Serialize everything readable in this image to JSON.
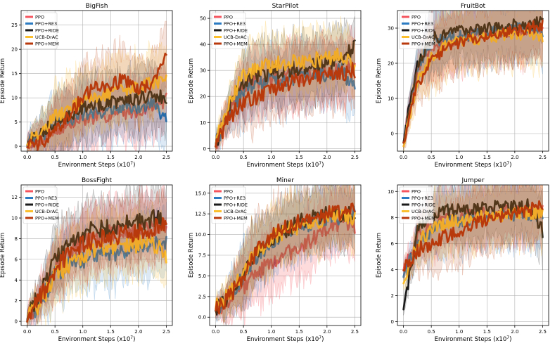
{
  "figure": {
    "xlabel": "Environment Steps (x10",
    "xlabel_exp": "7",
    "xlabel_close": ")",
    "ylabel": "Episode Return"
  },
  "legend": [
    {
      "name": "PPO",
      "color": "#f4555e"
    },
    {
      "name": "PPO+RE3",
      "color": "#2a7bc2"
    },
    {
      "name": "PPO+RIDE",
      "color": "#1a1a1a"
    },
    {
      "name": "UCB-DrAC",
      "color": "#fbbf2e"
    },
    {
      "name": "PPO+MEM",
      "color": "#b83a0c"
    }
  ],
  "chart_data": [
    {
      "type": "line",
      "title": "BigFish",
      "xlabel": "Environment Steps (x10^7)",
      "ylabel": "Episode Return",
      "xlim": [
        0,
        2.5
      ],
      "ylim": [
        -1,
        28
      ],
      "xticks": [
        "0.0",
        "0.5",
        "1.0",
        "1.5",
        "2.0",
        "2.5"
      ],
      "yticks": [
        "0",
        "5",
        "10",
        "15",
        "20",
        "25"
      ],
      "x": [
        0.0,
        0.25,
        0.5,
        0.75,
        1.0,
        1.25,
        1.5,
        1.75,
        2.0,
        2.25,
        2.5
      ],
      "series": [
        {
          "name": "PPO",
          "values": [
            0.8,
            1.5,
            3.0,
            4.5,
            5.5,
            6.0,
            6.5,
            7.0,
            7.5,
            8.5,
            9.5
          ]
        },
        {
          "name": "PPO+RE3",
          "values": [
            0.8,
            2.0,
            4.5,
            5.5,
            6.5,
            7.0,
            7.5,
            8.0,
            8.0,
            9.0,
            5.0
          ]
        },
        {
          "name": "PPO+RIDE",
          "values": [
            1.0,
            2.5,
            5.5,
            6.5,
            8.0,
            8.5,
            9.0,
            9.5,
            10.0,
            10.5,
            10.0
          ]
        },
        {
          "name": "UCB-DrAC",
          "values": [
            1.0,
            3.0,
            6.0,
            7.5,
            9.5,
            10.0,
            11.0,
            11.5,
            12.0,
            13.0,
            14.0
          ]
        },
        {
          "name": "PPO+MEM",
          "values": [
            0.5,
            0.8,
            3.0,
            6.5,
            10.0,
            13.0,
            12.5,
            14.0,
            12.0,
            13.0,
            19.5
          ]
        }
      ]
    },
    {
      "type": "line",
      "title": "StarPilot",
      "xlabel": "Environment Steps (x10^7)",
      "ylabel": "Episode Return",
      "xlim": [
        0,
        2.5
      ],
      "ylim": [
        -1,
        53
      ],
      "xticks": [
        "0.0",
        "0.5",
        "1.0",
        "1.5",
        "2.0",
        "2.5"
      ],
      "yticks": [
        "0",
        "10",
        "20",
        "30",
        "40",
        "50"
      ],
      "x": [
        0.0,
        0.25,
        0.5,
        0.75,
        1.0,
        1.25,
        1.5,
        1.75,
        2.0,
        2.25,
        2.5
      ],
      "series": [
        {
          "name": "PPO",
          "values": [
            2,
            15,
            24,
            26,
            27,
            28,
            28,
            29,
            30,
            30,
            31
          ]
        },
        {
          "name": "PPO+RE3",
          "values": [
            2,
            14,
            22,
            25,
            27,
            26,
            28,
            28,
            29,
            30,
            24
          ]
        },
        {
          "name": "PPO+RIDE",
          "values": [
            2,
            16,
            26,
            28,
            29,
            30,
            31,
            32,
            33,
            34,
            39
          ]
        },
        {
          "name": "UCB-DrAC",
          "values": [
            2,
            18,
            28,
            31,
            32,
            33,
            34,
            34,
            35,
            36,
            32
          ]
        },
        {
          "name": "PPO+MEM",
          "values": [
            2,
            12,
            18,
            20,
            23,
            25,
            26,
            27,
            28,
            29,
            30
          ]
        }
      ]
    },
    {
      "type": "line",
      "title": "FruitBot",
      "xlabel": "Environment Steps (x10^7)",
      "ylabel": "Episode Return",
      "xlim": [
        0,
        2.5
      ],
      "ylim": [
        -5,
        35
      ],
      "xticks": [
        "0.0",
        "0.5",
        "1.0",
        "1.5",
        "2.0",
        "2.5"
      ],
      "yticks": [
        "0",
        "10",
        "20",
        "30"
      ],
      "x": [
        0.0,
        0.25,
        0.5,
        0.75,
        1.0,
        1.25,
        1.5,
        1.75,
        2.0,
        2.25,
        2.5
      ],
      "series": [
        {
          "name": "PPO",
          "values": [
            -2,
            18,
            25,
            26,
            27,
            28,
            28,
            29,
            29,
            30,
            30
          ]
        },
        {
          "name": "PPO+RE3",
          "values": [
            -2,
            19,
            26,
            27,
            28,
            28,
            29,
            29,
            30,
            30,
            29
          ]
        },
        {
          "name": "PPO+RIDE",
          "values": [
            -2,
            20,
            27,
            28,
            29,
            29,
            30,
            30,
            31,
            31,
            32
          ]
        },
        {
          "name": "UCB-DrAC",
          "values": [
            -3,
            15,
            22,
            25,
            26,
            27,
            27,
            28,
            28,
            28,
            27
          ]
        },
        {
          "name": "PPO+MEM",
          "values": [
            -2,
            14,
            21,
            24,
            26,
            27,
            28,
            29,
            29,
            30,
            31
          ]
        }
      ]
    },
    {
      "type": "line",
      "title": "BossFight",
      "xlabel": "Environment Steps (x10^7)",
      "ylabel": "Episode Return",
      "xlim": [
        0,
        2.5
      ],
      "ylim": [
        -0.4,
        13.2
      ],
      "xticks": [
        "0.0",
        "0.5",
        "1.0",
        "1.5",
        "2.0",
        "2.5"
      ],
      "yticks": [
        "0",
        "2",
        "4",
        "6",
        "8",
        "10",
        "12"
      ],
      "x": [
        0.0,
        0.25,
        0.5,
        0.75,
        1.0,
        1.25,
        1.5,
        1.75,
        2.0,
        2.25,
        2.5
      ],
      "series": [
        {
          "name": "PPO",
          "values": [
            0.2,
            2.5,
            5.5,
            6.5,
            7.5,
            8.0,
            8.5,
            8.5,
            9.0,
            9.0,
            9.5
          ]
        },
        {
          "name": "PPO+RE3",
          "values": [
            0.2,
            2.0,
            4.5,
            5.5,
            6.0,
            6.5,
            6.5,
            7.0,
            7.5,
            7.5,
            7.5
          ]
        },
        {
          "name": "PPO+RIDE",
          "values": [
            0.3,
            3.0,
            6.0,
            7.5,
            8.5,
            9.0,
            9.0,
            9.5,
            9.5,
            10.0,
            9.5
          ]
        },
        {
          "name": "UCB-DrAC",
          "values": [
            0.2,
            2.0,
            4.5,
            5.5,
            6.5,
            7.0,
            7.0,
            7.5,
            7.5,
            7.5,
            6.5
          ]
        },
        {
          "name": "PPO+MEM",
          "values": [
            0.2,
            2.5,
            5.0,
            6.5,
            7.5,
            8.0,
            8.0,
            8.5,
            8.5,
            9.0,
            9.2
          ]
        }
      ]
    },
    {
      "type": "line",
      "title": "Miner",
      "xlabel": "Environment Steps (x10^7)",
      "ylabel": "Episode Return",
      "xlim": [
        0,
        2.5
      ],
      "ylim": [
        -1,
        16
      ],
      "xticks": [
        "0.0",
        "0.5",
        "1.0",
        "1.5",
        "2.0",
        "2.5"
      ],
      "yticks": [
        "0.0",
        "2.5",
        "5.0",
        "7.5",
        "10.0",
        "12.5",
        "15.0"
      ],
      "x": [
        0.0,
        0.25,
        0.5,
        0.75,
        1.0,
        1.25,
        1.5,
        1.75,
        2.0,
        2.25,
        2.5
      ],
      "series": [
        {
          "name": "PPO",
          "values": [
            1.0,
            2.0,
            3.5,
            5.5,
            6.5,
            7.5,
            8.5,
            9.5,
            10.5,
            11.5,
            11.0
          ]
        },
        {
          "name": "PPO+RE3",
          "values": [
            1.0,
            2.5,
            5.0,
            7.5,
            9.0,
            10.0,
            11.0,
            11.5,
            12.0,
            12.0,
            12.5
          ]
        },
        {
          "name": "PPO+RIDE",
          "values": [
            1.0,
            2.5,
            5.5,
            8.0,
            9.5,
            10.5,
            11.5,
            12.0,
            12.5,
            12.5,
            12.5
          ]
        },
        {
          "name": "UCB-DrAC",
          "values": [
            1.2,
            2.8,
            5.5,
            8.0,
            9.5,
            10.5,
            11.0,
            11.5,
            12.0,
            12.5,
            12.0
          ]
        },
        {
          "name": "PPO+MEM",
          "values": [
            1.0,
            2.5,
            5.0,
            8.0,
            10.0,
            11.0,
            11.5,
            12.0,
            12.5,
            12.5,
            13.0
          ]
        }
      ]
    },
    {
      "type": "line",
      "title": "Jumper",
      "xlabel": "Environment Steps (x10^7)",
      "ylabel": "Episode Return",
      "xlim": [
        0,
        2.5
      ],
      "ylim": [
        -0.3,
        10.5
      ],
      "xticks": [
        "0.0",
        "0.5",
        "1.0",
        "1.5",
        "2.0",
        "2.5"
      ],
      "yticks": [
        "0",
        "2",
        "4",
        "6",
        "8",
        "10"
      ],
      "x": [
        0.0,
        0.25,
        0.5,
        0.75,
        1.0,
        1.25,
        1.5,
        1.75,
        2.0,
        2.25,
        2.5
      ],
      "series": [
        {
          "name": "PPO",
          "values": [
            4.0,
            6.5,
            7.5,
            7.8,
            8.0,
            8.2,
            8.3,
            8.4,
            8.5,
            8.5,
            8.5
          ]
        },
        {
          "name": "PPO+RE3",
          "values": [
            3.5,
            6.0,
            7.0,
            7.5,
            7.8,
            8.0,
            8.0,
            8.2,
            8.2,
            8.3,
            8.0
          ]
        },
        {
          "name": "PPO+RIDE",
          "values": [
            1.0,
            7.0,
            8.0,
            8.5,
            8.6,
            8.7,
            8.8,
            8.8,
            8.8,
            8.9,
            7.0
          ]
        },
        {
          "name": "UCB-DrAC",
          "values": [
            3.0,
            6.0,
            7.0,
            7.5,
            7.8,
            8.0,
            8.0,
            8.2,
            8.3,
            8.3,
            8.5
          ]
        },
        {
          "name": "PPO+MEM",
          "values": [
            4.0,
            5.5,
            6.0,
            6.5,
            7.0,
            7.5,
            7.8,
            8.0,
            8.2,
            8.5,
            9.0
          ]
        }
      ]
    }
  ]
}
